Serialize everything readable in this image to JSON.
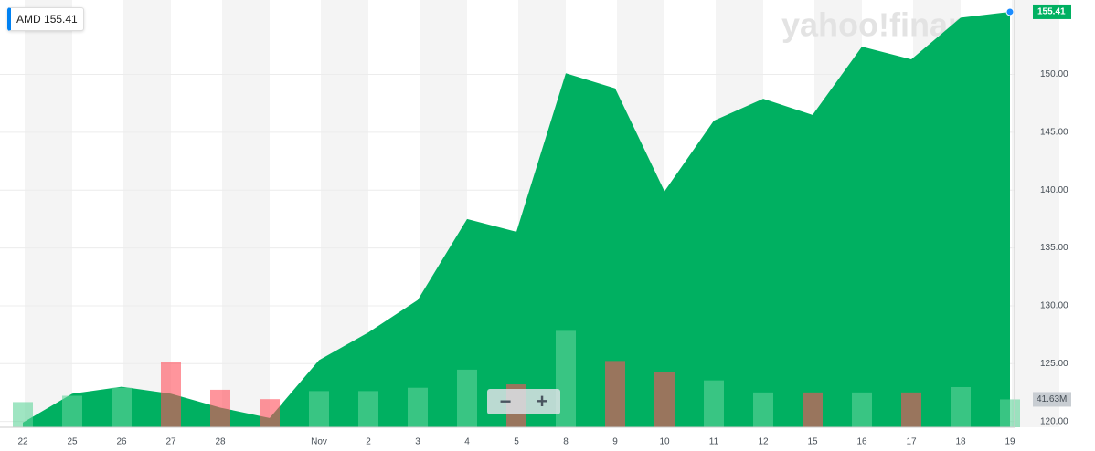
{
  "chart_data": {
    "type": "area",
    "series": [
      {
        "name": "AMD",
        "color": "#00b061",
        "values": [
          119.9,
          122.4,
          123.0,
          122.4,
          121.2,
          120.3,
          125.3,
          127.7,
          130.5,
          137.5,
          136.4,
          150.1,
          148.8,
          139.9,
          146.0,
          147.9,
          146.5,
          152.4,
          151.3,
          154.9,
          155.41
        ],
        "value_labels": [
          null,
          null,
          null,
          null,
          null,
          null,
          null,
          null,
          null,
          null,
          null,
          null,
          null,
          null,
          null,
          null,
          null,
          null,
          null,
          null,
          "155.41"
        ]
      }
    ],
    "categories": [
      "22",
      "25",
      "26",
      "27",
      "28",
      null,
      "Nov",
      "2",
      "3",
      "4",
      "5",
      "8",
      "9",
      "10",
      "11",
      "12",
      "15",
      "16",
      "17",
      "18",
      "19"
    ],
    "volume": {
      "values": [
        37.6,
        47,
        59,
        98,
        56,
        42,
        54,
        54,
        59,
        86,
        64,
        144,
        99,
        83,
        70,
        52,
        52,
        52,
        52,
        60,
        41.63
      ],
      "value_labels": [
        null,
        null,
        null,
        null,
        null,
        null,
        null,
        null,
        null,
        null,
        null,
        null,
        null,
        null,
        null,
        null,
        null,
        null,
        null,
        null,
        "41.63M"
      ],
      "colors": [
        "#5fd49a",
        "#5fd49a",
        "#5fd49a",
        "#ff4f5a",
        "#ff4f5a",
        "#ff4f5a",
        "#5fd49a",
        "#5fd49a",
        "#5fd49a",
        "#5fd49a",
        "#ff4f5a",
        "#5fd49a",
        "#ff4f5a",
        "#ff4f5a",
        "#5fd49a",
        "#5fd49a",
        "#ff4f5a",
        "#5fd49a",
        "#ff4f5a",
        "#5fd49a",
        "#5fd49a"
      ],
      "ylim": [
        0,
        627
      ]
    },
    "ylim": [
      119.5,
      155.8
    ],
    "yticks": [
      {
        "value": 120,
        "label": "120.00"
      },
      {
        "value": 125,
        "label": "125.00"
      },
      {
        "value": 130,
        "label": "130.00"
      },
      {
        "value": 135,
        "label": "135.00"
      },
      {
        "value": 140,
        "label": "140.00"
      },
      {
        "value": 145,
        "label": "145.00"
      },
      {
        "value": 150,
        "label": "150.00"
      }
    ],
    "grid": true,
    "watermark": "yahoo!finance",
    "zoom_out": "−",
    "zoom_in": "+"
  }
}
